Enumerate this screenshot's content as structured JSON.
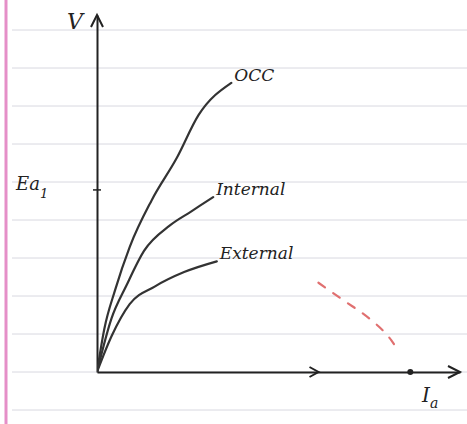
{
  "chart_data": {
    "type": "line",
    "y_label": "V",
    "x_label": {
      "text": "I",
      "subscript": "a"
    },
    "annotations": [
      {
        "text": "Ea",
        "subscript": "1",
        "y": 5.1
      }
    ],
    "xlim": [
      0,
      10
    ],
    "ylim": [
      0,
      10
    ],
    "grid": false,
    "tick_labels": false,
    "series": [
      {
        "name": "OCC",
        "color": "#333333",
        "line_style": "solid",
        "x": [
          0,
          0.2,
          0.5,
          0.9,
          1.5,
          2.2,
          2.8,
          3.7
        ],
        "values": [
          0,
          1.2,
          2.3,
          3.5,
          4.8,
          6.0,
          7.2,
          8.1
        ]
      },
      {
        "name": "Internal",
        "color": "#333333",
        "line_style": "solid",
        "x": [
          0,
          0.4,
          0.8,
          1.3,
          2.0,
          2.6,
          3.2
        ],
        "values": [
          0,
          1.5,
          2.4,
          3.4,
          4.1,
          4.5,
          4.9
        ]
      },
      {
        "name": "External",
        "color": "#333333",
        "line_style": "solid",
        "x": [
          0,
          0.4,
          0.9,
          1.6,
          2.4,
          3.3
        ],
        "values": [
          0,
          1.0,
          1.9,
          2.4,
          2.8,
          3.1
        ]
      },
      {
        "color": "#e07070",
        "line_style": "dashed",
        "x": [
          6.1,
          6.8,
          7.5,
          8.1,
          8.3
        ],
        "values": [
          2.5,
          2.0,
          1.5,
          0.9,
          0.6
        ]
      }
    ]
  }
}
